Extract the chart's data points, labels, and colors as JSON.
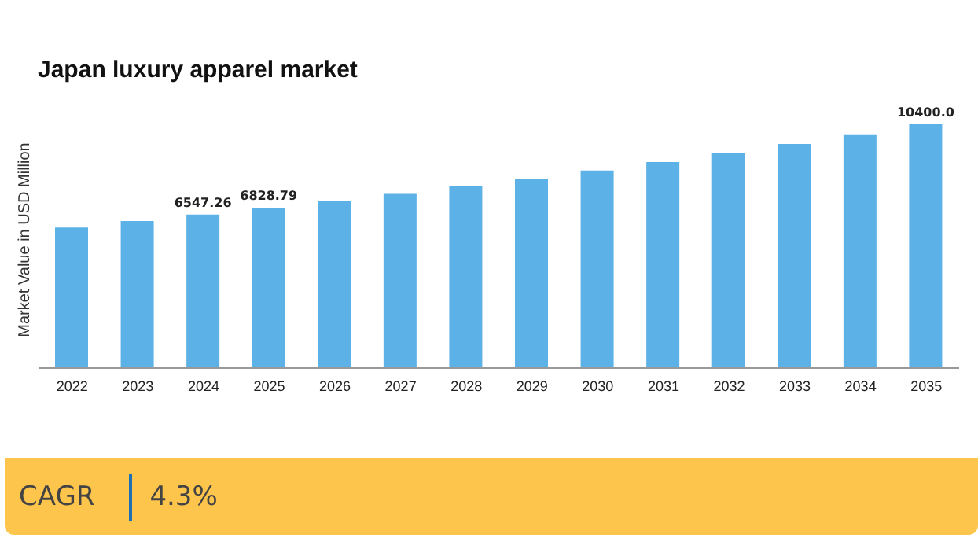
{
  "chart_data": {
    "type": "bar",
    "title": "Japan luxury apparel market",
    "ylabel": "Market Value in USD Million",
    "categories": [
      "2022",
      "2023",
      "2024",
      "2025",
      "2026",
      "2027",
      "2028",
      "2029",
      "2030",
      "2031",
      "2032",
      "2033",
      "2034",
      "2035"
    ],
    "values": [
      6000,
      6270,
      6547.26,
      6828.79,
      7120,
      7430,
      7750,
      8080,
      8430,
      8790,
      9170,
      9560,
      9970,
      10400.0
    ],
    "value_labels": [
      null,
      null,
      "6547.26",
      "6828.79",
      null,
      null,
      null,
      null,
      null,
      null,
      null,
      null,
      null,
      "10400.0"
    ],
    "color": "#5cb1e6",
    "tick_labels": "x",
    "grid": false,
    "legend": false,
    "annotations": [
      "CAGR",
      "4.3%"
    ]
  }
}
